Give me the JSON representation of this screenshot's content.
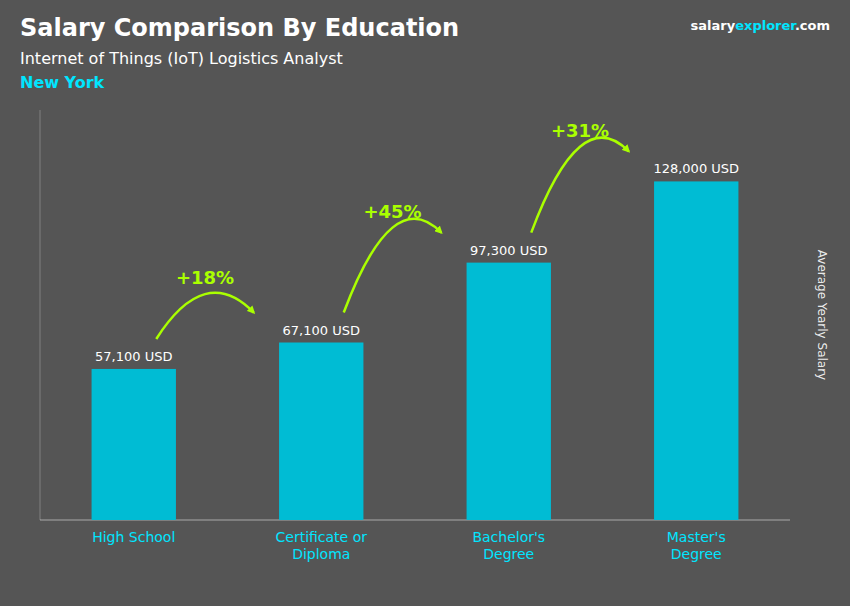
{
  "chart_data": {
    "type": "bar",
    "title": "Salary Comparison By Education",
    "subtitle": "Internet of Things (IoT) Logistics Analyst",
    "location": "New York",
    "ylabel": "Average Yearly Salary",
    "brand": [
      "salary",
      "explorer",
      ".com"
    ],
    "categories": [
      "High School",
      "Certificate or\nDiploma",
      "Bachelor's\nDegree",
      "Master's\nDegree"
    ],
    "values": [
      57100,
      67100,
      97300,
      128000
    ],
    "value_labels": [
      "57,100 USD",
      "67,100 USD",
      "97,300 USD",
      "128,000 USD"
    ],
    "annotations": [
      "+18%",
      "+45%",
      "+31%"
    ],
    "color": "#00bcd4",
    "ylim": [
      0,
      155000
    ],
    "data_labels": true,
    "tick_labels": "x",
    "grid": false
  }
}
